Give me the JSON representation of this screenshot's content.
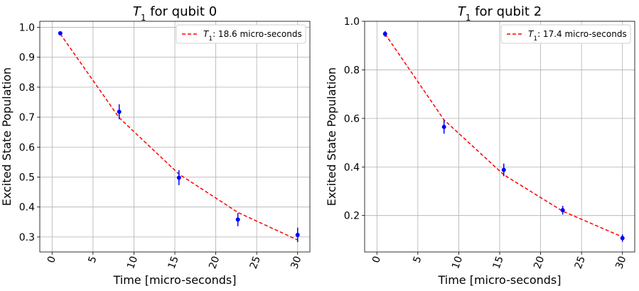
{
  "colors": {
    "fit": "#ff0000",
    "points": "#0000ff",
    "grid": "#b0b0b0"
  },
  "chart_data": [
    {
      "type": "scatter",
      "title": "$T_1$ for qubit 0",
      "title_main": "T",
      "title_sub": "1",
      "title_rest": " for qubit 0",
      "xlabel": "Time [micro-seconds]",
      "ylabel": "Excited State Population",
      "xlim": [
        -1.5,
        31.5
      ],
      "ylim": [
        0.25,
        1.02
      ],
      "xticks": [
        0,
        5,
        10,
        15,
        20,
        25,
        30
      ],
      "xtick_labels": [
        "0",
        "5",
        "10",
        "15",
        "20",
        "25",
        "30"
      ],
      "yticks": [
        0.3,
        0.4,
        0.5,
        0.6,
        0.7,
        0.8,
        0.9,
        1.0
      ],
      "ytick_labels": [
        "0.3",
        "0.4",
        "0.5",
        "0.6",
        "0.7",
        "0.8",
        "0.9",
        "1.0"
      ],
      "grid": true,
      "legend_position": "top-right",
      "legend_label_main": "T",
      "legend_label_sub": "1",
      "legend_label_rest": ": 18.6 micro-seconds",
      "points": {
        "x": [
          1,
          8.2,
          15.5,
          22.7,
          30
        ],
        "y": [
          0.98,
          0.718,
          0.498,
          0.358,
          0.307
        ],
        "err": [
          0.006,
          0.025,
          0.025,
          0.022,
          0.024
        ]
      },
      "fit": {
        "x": [
          1,
          8.2,
          15.5,
          22.7,
          30
        ],
        "y": [
          0.978,
          0.698,
          0.51,
          0.382,
          0.29
        ]
      }
    },
    {
      "type": "scatter",
      "title": "$T_1$ for qubit 2",
      "title_main": "T",
      "title_sub": "1",
      "title_rest": " for qubit 2",
      "xlabel": "Time [micro-seconds]",
      "ylabel": "Excited State Population",
      "xlim": [
        -1.5,
        31.5
      ],
      "ylim": [
        0.05,
        1.0
      ],
      "xticks": [
        0,
        5,
        10,
        15,
        20,
        25,
        30
      ],
      "xtick_labels": [
        "0",
        "5",
        "10",
        "15",
        "20",
        "25",
        "30"
      ],
      "yticks": [
        0.2,
        0.4,
        0.6,
        0.8,
        1.0
      ],
      "ytick_labels": [
        "0.2",
        "0.4",
        "0.6",
        "0.8",
        "1.0"
      ],
      "grid": true,
      "legend_position": "top-right",
      "legend_label_main": "T",
      "legend_label_sub": "1",
      "legend_label_rest": ": 17.4 micro-seconds",
      "points": {
        "x": [
          1,
          8.2,
          15.5,
          22.7,
          30
        ],
        "y": [
          0.948,
          0.565,
          0.388,
          0.222,
          0.107
        ],
        "err": [
          0.012,
          0.028,
          0.026,
          0.018,
          0.015
        ]
      },
      "fit": {
        "x": [
          1,
          8.2,
          15.5,
          22.7,
          30
        ],
        "y": [
          0.948,
          0.594,
          0.368,
          0.218,
          0.112
        ]
      }
    }
  ]
}
